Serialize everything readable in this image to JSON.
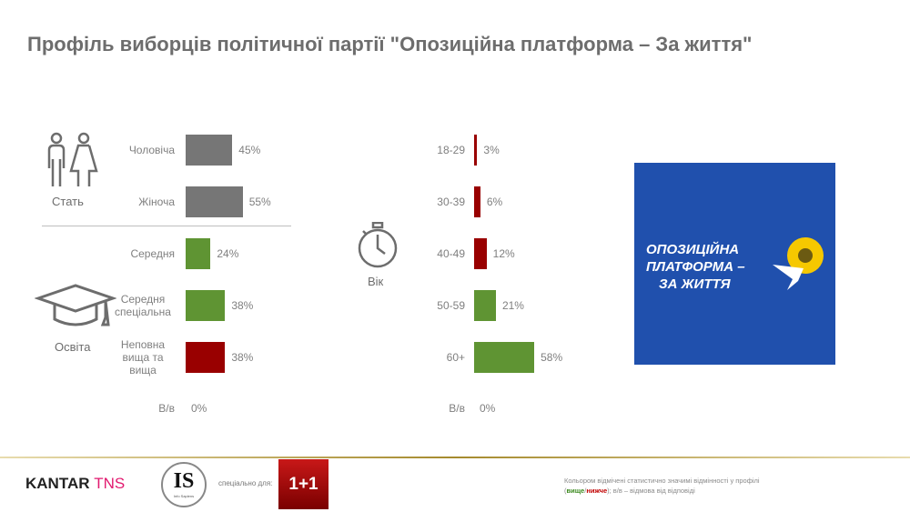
{
  "title": "Профіль виборців політичної партії \"Опозиційна платформа – За життя\"",
  "colors": {
    "neutral": "#767676",
    "higher": "#5f9433",
    "lower": "#990000"
  },
  "chart_data": [
    {
      "type": "bar",
      "orientation": "horizontal",
      "groups": [
        {
          "label": "Стать",
          "icon": "man-woman-icon",
          "categories": [
            "Чоловіча",
            "Жіноча"
          ],
          "values": [
            45,
            55
          ],
          "significance": [
            "neutral",
            "neutral"
          ]
        },
        {
          "label": "Освіта",
          "icon": "graduation-cap-icon",
          "categories": [
            "Середня",
            "Середня спеціальна",
            "Неповна вища та вища",
            "В/в"
          ],
          "values": [
            24,
            38,
            38,
            0
          ],
          "significance": [
            "higher",
            "higher",
            "lower",
            "neutral"
          ]
        }
      ],
      "value_format": "%"
    },
    {
      "type": "bar",
      "orientation": "horizontal",
      "groups": [
        {
          "label": "Вік",
          "icon": "stopwatch-icon",
          "categories": [
            "18-29",
            "30-39",
            "40-49",
            "50-59",
            "60+",
            "В/в"
          ],
          "values": [
            3,
            6,
            12,
            21,
            58,
            0
          ],
          "significance": [
            "lower",
            "lower",
            "lower",
            "higher",
            "higher",
            "neutral"
          ]
        }
      ],
      "value_format": "%"
    }
  ],
  "party_logo": {
    "lines": [
      "ОПОЗИЦІЙНА",
      "ПЛАТФОРМА –",
      "ЗА ЖИТТЯ"
    ]
  },
  "footer": {
    "kantar": "KANTAR",
    "tns": "TNS",
    "is_logo": "IS",
    "is_sub": "Info Sapiens",
    "special_for": "спеціально для:",
    "channel": "1+1",
    "note_pre": "Кольором відмічені статистично значимі відмінності у профілі",
    "note_open": "(",
    "note_higher": "вище",
    "note_slash": "/",
    "note_lower": "нижче",
    "note_post": "); в/в – відмова від відповіді"
  }
}
